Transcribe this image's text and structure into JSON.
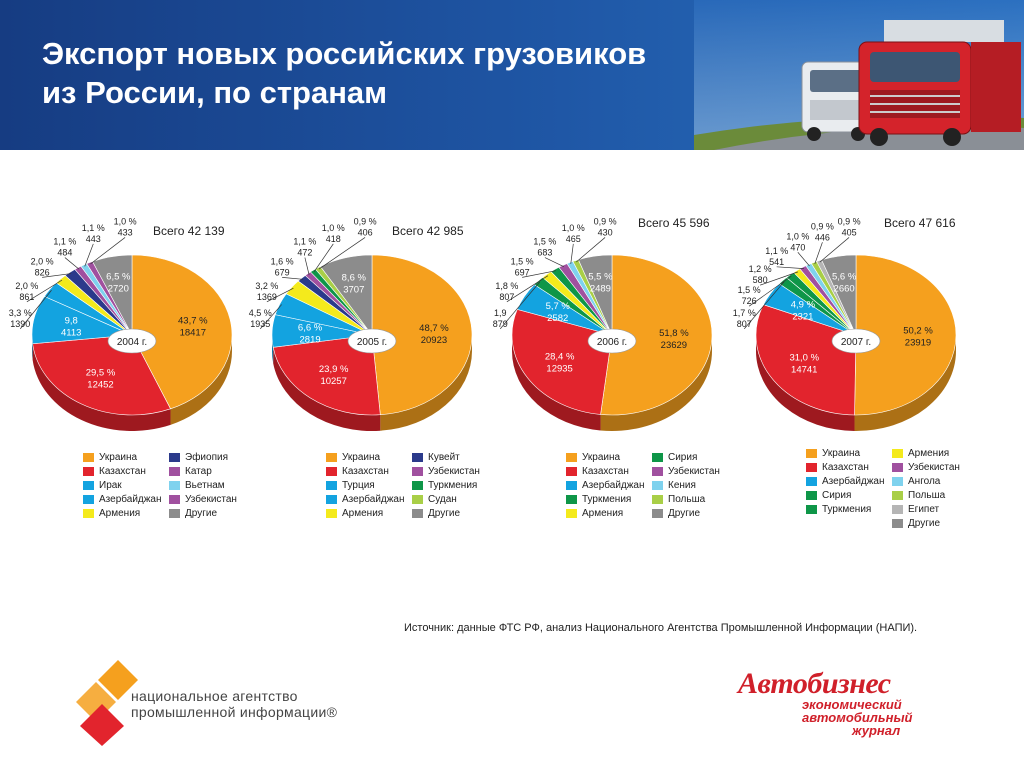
{
  "header": {
    "title": "Экспорт новых российских грузовиков\nиз России, по странам"
  },
  "colors": {
    "Украина": "#f5a01e",
    "Казахстан": "#e2242d",
    "Ирак": "#13a3e0",
    "Турция": "#13a3e0",
    "Азербайджан": "#13a3e0",
    "Сирия": "#0e9648",
    "Туркмения": "#0e9648",
    "Армения": "#f4ea1c",
    "Эфиопия": "#2b3a8b",
    "Кувейт": "#2b3a8b",
    "Катар": "#a0509f",
    "Узбекистан": "#a0509f",
    "Вьетнам": "#7fd2ee",
    "Кения": "#7fd2ee",
    "Ангола": "#7fd2ee",
    "Судан": "#a9cf47",
    "Польша": "#a9cf47",
    "Египет": "#b5b5b5",
    "Другие": "#8c8c8c"
  },
  "chart_data": [
    {
      "type": "pie",
      "year_label": "2004 г.",
      "total": "Всего 42 139",
      "slices": [
        {
          "name": "Украина",
          "percent": "43,7 %",
          "value": 18417
        },
        {
          "name": "Казахстан",
          "percent": "29,5 %",
          "value": 12452
        },
        {
          "name": "Ирак",
          "percent": "9,8",
          "value": 4113
        },
        {
          "name": "Азербайджан",
          "percent": "3,3 %",
          "value": 1390
        },
        {
          "name": "Армения",
          "percent": "2,0 %",
          "value": 861
        },
        {
          "name": "Эфиопия",
          "percent": "2,0 %",
          "value": 826
        },
        {
          "name": "Катар",
          "percent": "1,1 %",
          "value": 484
        },
        {
          "name": "Вьетнам",
          "percent": "1,1 %",
          "value": 443
        },
        {
          "name": "Узбекистан",
          "percent": "1,0 %",
          "value": 433
        },
        {
          "name": "Другие",
          "percent": "6,5 %",
          "value": 2720
        }
      ],
      "legend": [
        "Украина",
        "Казахстан",
        "Ирак",
        "Азербайджан",
        "Армения",
        "Эфиопия",
        "Катар",
        "Вьетнам",
        "Узбекистан",
        "Другие"
      ]
    },
    {
      "type": "pie",
      "year_label": "2005 г.",
      "total": "Всего 42 985",
      "slices": [
        {
          "name": "Украина",
          "percent": "48,7 %",
          "value": 20923
        },
        {
          "name": "Казахстан",
          "percent": "23,9 %",
          "value": 10257
        },
        {
          "name": "Турция",
          "percent": "6,6 %",
          "value": 2819
        },
        {
          "name": "Азербайджан",
          "percent": "4,5 %",
          "value": 1935
        },
        {
          "name": "Армения",
          "percent": "3,2 %",
          "value": 1369
        },
        {
          "name": "Кувейт",
          "percent": "1,6 %",
          "value": 679
        },
        {
          "name": "Узбекистан",
          "percent": "1,1 %",
          "value": 472
        },
        {
          "name": "Туркмения",
          "percent": "1,0 %",
          "value": 418
        },
        {
          "name": "Судан",
          "percent": "0,9 %",
          "value": 406
        },
        {
          "name": "Другие",
          "percent": "8,6 %",
          "value": 3707
        }
      ],
      "legend": [
        "Украина",
        "Казахстан",
        "Турция",
        "Азербайджан",
        "Армения",
        "Кувейт",
        "Узбекистан",
        "Туркмения",
        "Судан",
        "Другие"
      ]
    },
    {
      "type": "pie",
      "year_label": "2006 г.",
      "total": "Всего 45 596",
      "slices": [
        {
          "name": "Украина",
          "percent": "51,8 %",
          "value": 23629
        },
        {
          "name": "Казахстан",
          "percent": "28,4 %",
          "value": 12935
        },
        {
          "name": "Азербайджан",
          "percent": "5,7 %",
          "value": 2582
        },
        {
          "name": "Туркмения",
          "percent": "1,9",
          "value": 879
        },
        {
          "name": "Армения",
          "percent": "1,8 %",
          "value": 807
        },
        {
          "name": "Сирия",
          "percent": "1,5 %",
          "value": 697
        },
        {
          "name": "Узбекистан",
          "percent": "1,5 %",
          "value": 683
        },
        {
          "name": "Кения",
          "percent": "1,0 %",
          "value": 465
        },
        {
          "name": "Польша",
          "percent": "0,9 %",
          "value": 430
        },
        {
          "name": "Другие",
          "percent": "5,5 %",
          "value": 2489
        }
      ],
      "legend": [
        "Украина",
        "Казахстан",
        "Азербайджан",
        "Туркмения",
        "Армения",
        "Сирия",
        "Узбекистан",
        "Кения",
        "Польша",
        "Другие"
      ]
    },
    {
      "type": "pie",
      "year_label": "2007 г.",
      "total": "Всего 47 616",
      "slices": [
        {
          "name": "Украина",
          "percent": "50,2 %",
          "value": 23919
        },
        {
          "name": "Казахстан",
          "percent": "31,0 %",
          "value": 14741
        },
        {
          "name": "Азербайджан",
          "percent": "4,9 %",
          "value": 2321
        },
        {
          "name": "Сирия",
          "percent": "1,7 %",
          "value": 807
        },
        {
          "name": "Туркмения",
          "percent": "1,5 %",
          "value": 726
        },
        {
          "name": "Армения",
          "percent": "1,2 %",
          "value": 580
        },
        {
          "name": "Узбекистан",
          "percent": "1,1 %",
          "value": 541
        },
        {
          "name": "Ангола",
          "percent": "1,0 %",
          "value": 470
        },
        {
          "name": "Польша",
          "percent": "0,9 %",
          "value": 446
        },
        {
          "name": "Египет",
          "percent": "0,9 %",
          "value": 405
        },
        {
          "name": "Другие",
          "percent": "5,6 %",
          "value": 2660
        }
      ],
      "legend": [
        "Украина",
        "Казахстан",
        "Азербайджан",
        "Сирия",
        "Туркмения",
        "Армения",
        "Узбекистан",
        "Ангола",
        "Польша",
        "Египет",
        "Другие"
      ]
    }
  ],
  "footer": {
    "source": "Источник: данные ФТС РФ, анализ Национального Агентства Промышленной Информации (НАПИ).",
    "napi_line1": "национальное агентство",
    "napi_line2": "промышленной информации®",
    "autobusiness_logo": "Автобизнес",
    "autobusiness_sub1": "экономический",
    "autobusiness_sub2": "автомобильный",
    "autobusiness_sub3": "журнал"
  }
}
